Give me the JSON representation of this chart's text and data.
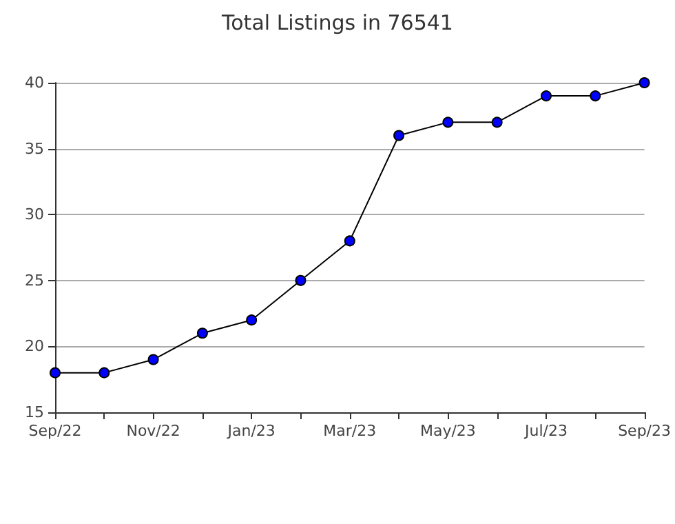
{
  "chart_data": {
    "type": "line",
    "title": "Total Listings in 76541",
    "categories": [
      "Sep/22",
      null,
      "Nov/22",
      null,
      "Jan/23",
      null,
      "Mar/23",
      null,
      "May/23",
      null,
      "Jul/23",
      null,
      "Sep/23"
    ],
    "series": [
      {
        "color": "#0000ff",
        "values": [
          18,
          18,
          19,
          21,
          22,
          25,
          28,
          36,
          37,
          37,
          39,
          39,
          40
        ]
      }
    ],
    "ylim": [
      15,
      40
    ],
    "yticks": [
      15,
      20,
      25,
      30,
      35,
      40
    ],
    "grid": "y",
    "marker": "circle",
    "line_style": "solid"
  }
}
